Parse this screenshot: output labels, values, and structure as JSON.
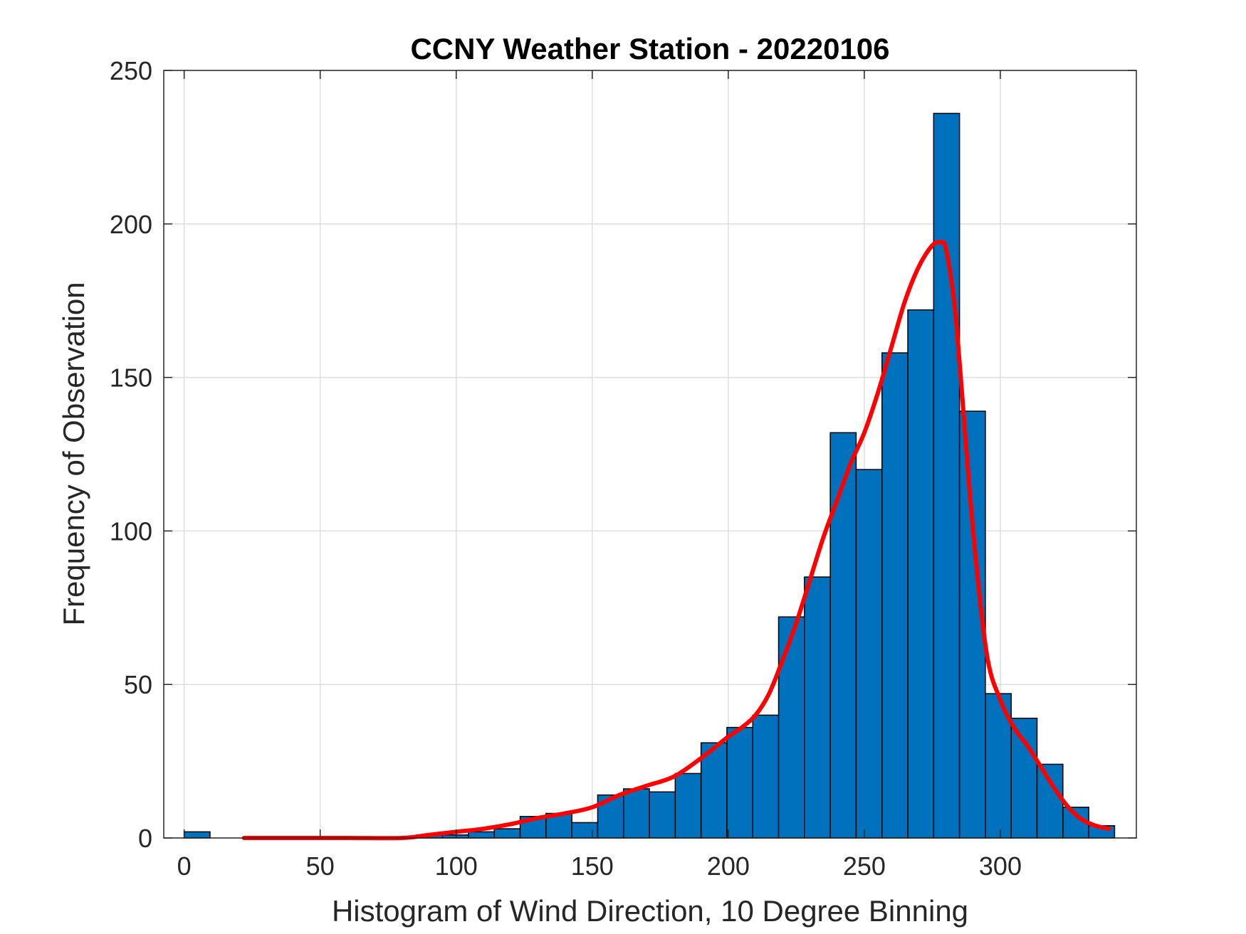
{
  "chart_data": {
    "type": "bar",
    "title": "CCNY Weather Station - 20220106",
    "xlabel": "Histogram of Wind Direction, 10 Degree Binning",
    "ylabel": "Frequency of Observation",
    "xlim": [
      -7.5,
      350
    ],
    "ylim": [
      0,
      250
    ],
    "xticks": [
      0,
      50,
      100,
      150,
      200,
      250,
      300
    ],
    "yticks": [
      0,
      50,
      100,
      150,
      200,
      250
    ],
    "grid": true,
    "bin_width": 9.5,
    "bins": [
      {
        "start": 0,
        "value": 2
      },
      {
        "start": 9.5,
        "value": 0
      },
      {
        "start": 19,
        "value": 0
      },
      {
        "start": 28.5,
        "value": 0
      },
      {
        "start": 38,
        "value": 0
      },
      {
        "start": 47.5,
        "value": 0
      },
      {
        "start": 57,
        "value": 0
      },
      {
        "start": 66.5,
        "value": 0
      },
      {
        "start": 76,
        "value": 0
      },
      {
        "start": 85.5,
        "value": 1
      },
      {
        "start": 95,
        "value": 1
      },
      {
        "start": 104.5,
        "value": 2
      },
      {
        "start": 114,
        "value": 3
      },
      {
        "start": 123.5,
        "value": 7
      },
      {
        "start": 133,
        "value": 8
      },
      {
        "start": 142.5,
        "value": 5
      },
      {
        "start": 152,
        "value": 14
      },
      {
        "start": 161.5,
        "value": 16
      },
      {
        "start": 171,
        "value": 15
      },
      {
        "start": 180.5,
        "value": 21
      },
      {
        "start": 190,
        "value": 31
      },
      {
        "start": 199.5,
        "value": 36
      },
      {
        "start": 209,
        "value": 40
      },
      {
        "start": 218.5,
        "value": 72
      },
      {
        "start": 228,
        "value": 85
      },
      {
        "start": 237.5,
        "value": 132
      },
      {
        "start": 247,
        "value": 120
      },
      {
        "start": 256.5,
        "value": 158
      },
      {
        "start": 266,
        "value": 172
      },
      {
        "start": 275.5,
        "value": 236
      },
      {
        "start": 285,
        "value": 139
      },
      {
        "start": 294.5,
        "value": 47
      },
      {
        "start": 304,
        "value": 39
      },
      {
        "start": 313.5,
        "value": 24
      },
      {
        "start": 323,
        "value": 10
      },
      {
        "start": 332.5,
        "value": 4
      }
    ],
    "series": [
      {
        "name": "fit",
        "type": "line",
        "color": "#ff0000",
        "x": [
          22,
          40,
          60,
          80,
          90,
          100,
          110,
          120,
          130,
          140,
          150,
          160,
          170,
          180,
          190,
          200,
          205,
          210,
          215,
          220,
          225,
          230,
          235,
          240,
          245,
          250,
          255,
          260,
          265,
          270,
          275,
          278,
          280,
          283,
          285,
          290,
          295,
          300,
          305,
          310,
          315,
          320,
          325,
          330,
          335,
          340
        ],
        "y": [
          0,
          0,
          0,
          0,
          1,
          2,
          3,
          4.5,
          6.5,
          8,
          10,
          14,
          17,
          20,
          26,
          33,
          36,
          40,
          47,
          58,
          70,
          84,
          98,
          110,
          122,
          132,
          145,
          160,
          175,
          186,
          193,
          194,
          192,
          175,
          155,
          100,
          60,
          45,
          36,
          30,
          23,
          16,
          10,
          6,
          4,
          3
        ]
      }
    ],
    "colors": {
      "bar_fill": "#0072bd",
      "bar_edge": "#000000",
      "axes": "#262626",
      "grid": "#dedede",
      "fit_line": "#ff0000"
    }
  }
}
